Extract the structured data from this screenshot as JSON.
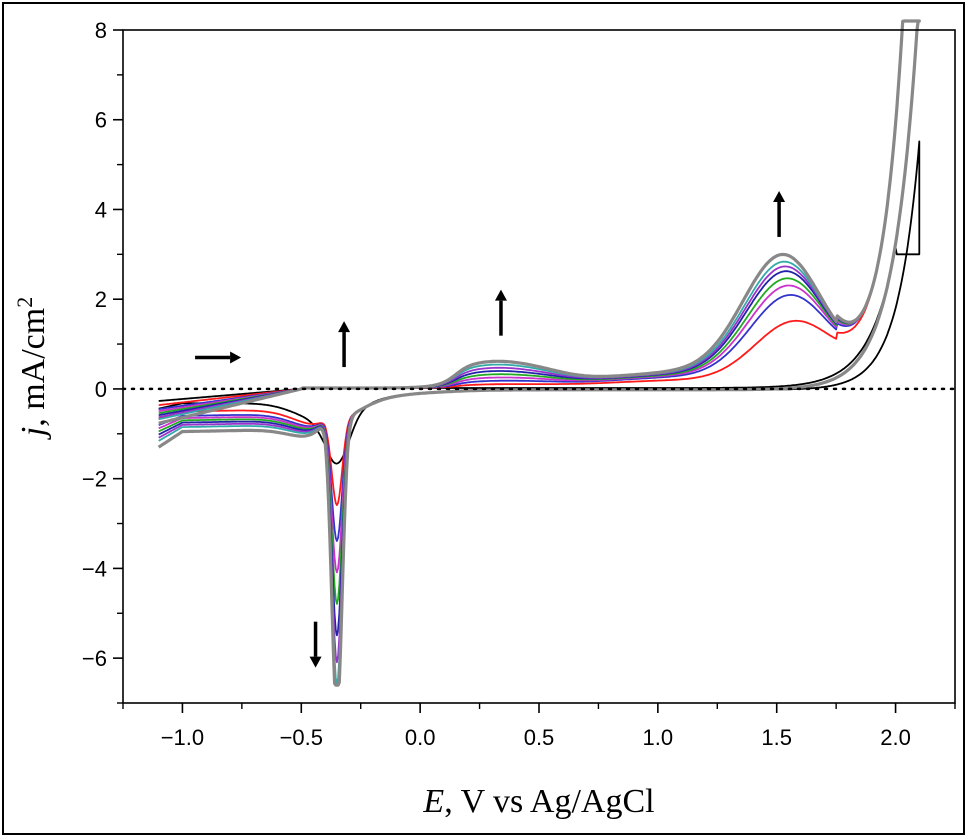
{
  "chart_data": {
    "type": "line",
    "title": "",
    "xlabel": "E, V vs Ag/AgCl",
    "xlabel_italic_part": "E",
    "xlabel_rest": ", V vs Ag/AgCl",
    "ylabel": "j, mA/cm²",
    "ylabel_italic_part": "j",
    "ylabel_rest": ", mA/cm",
    "ylabel_superscript": "2",
    "xlim": [
      -1.25,
      2.25
    ],
    "ylim": [
      -7,
      8
    ],
    "x_ticks": [
      -1.0,
      -0.5,
      0.0,
      0.5,
      1.0,
      1.5,
      2.0
    ],
    "x_tick_labels": [
      "−1.0",
      "−0.5",
      "0.0",
      "0.5",
      "1.0",
      "1.5",
      "2.0"
    ],
    "y_ticks": [
      -6,
      -4,
      -2,
      0,
      2,
      4,
      6,
      8
    ],
    "y_tick_labels": [
      "−6",
      "−4",
      "−2",
      "0",
      "2",
      "4",
      "6",
      "8"
    ],
    "grid": false,
    "zero_reference_line": "dotted",
    "series": [
      {
        "color": "#000000",
        "anodic_peak": 0.0,
        "cathodic_peak": -1.05,
        "upper_current": 3.0,
        "lower_plateau": -0.3,
        "mid_bump": 0.0
      },
      {
        "color": "#ff1a1a",
        "anodic_peak": 1.4,
        "cathodic_peak": -1.9,
        "upper_current": 8.5,
        "lower_plateau": -0.4,
        "mid_bump": 0.05
      },
      {
        "color": "#3333cc",
        "anodic_peak": 1.95,
        "cathodic_peak": -2.7,
        "upper_current": 8.5,
        "lower_plateau": -0.5,
        "mid_bump": 0.1
      },
      {
        "color": "#cc33cc",
        "anodic_peak": 2.15,
        "cathodic_peak": -3.4,
        "upper_current": 8.5,
        "lower_plateau": -0.55,
        "mid_bump": 0.15
      },
      {
        "color": "#22aa22",
        "anodic_peak": 2.3,
        "cathodic_peak": -4.1,
        "upper_current": 8.5,
        "lower_plateau": -0.6,
        "mid_bump": 0.2
      },
      {
        "color": "#2222aa",
        "anodic_peak": 2.45,
        "cathodic_peak": -4.8,
        "upper_current": 8.5,
        "lower_plateau": -0.65,
        "mid_bump": 0.25
      },
      {
        "color": "#9933cc",
        "anodic_peak": 2.55,
        "cathodic_peak": -5.4,
        "upper_current": 8.5,
        "lower_plateau": -0.7,
        "mid_bump": 0.3
      },
      {
        "color": "#33aaaa",
        "anodic_peak": 2.65,
        "cathodic_peak": -5.9,
        "upper_current": 8.5,
        "lower_plateau": -0.75,
        "mid_bump": 0.35
      },
      {
        "color": "#888888",
        "anodic_peak": 2.8,
        "cathodic_peak": -6.5,
        "upper_current": 8.5,
        "lower_plateau": -0.85,
        "mid_bump": 0.4
      }
    ],
    "arrows": [
      {
        "x": -0.85,
        "y": 0.7,
        "direction": "right"
      },
      {
        "x": -0.32,
        "y": 1.0,
        "direction": "up"
      },
      {
        "x": 0.34,
        "y": 1.7,
        "direction": "up"
      },
      {
        "x": 1.51,
        "y": 3.9,
        "direction": "up"
      },
      {
        "x": -0.44,
        "y": -5.7,
        "direction": "down"
      }
    ]
  }
}
